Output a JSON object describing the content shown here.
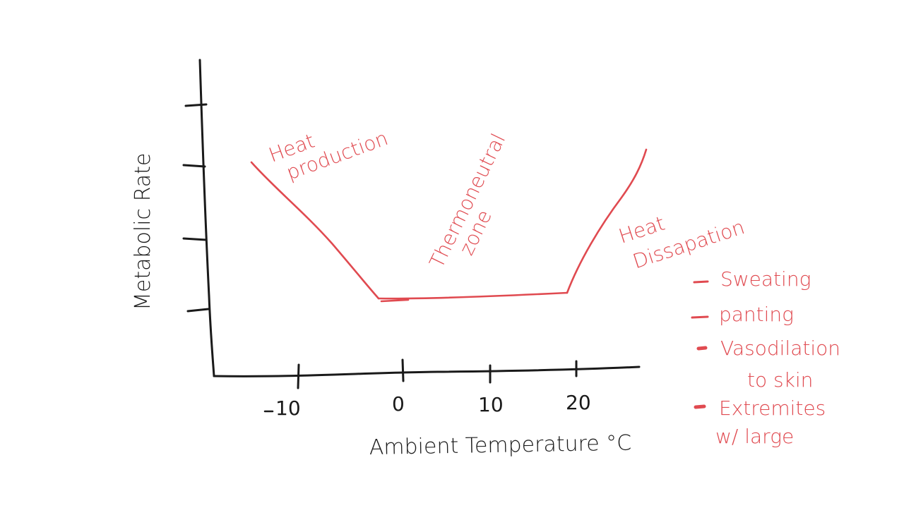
{
  "diagram": {
    "y_axis_label": "Metabolic Rate",
    "x_axis_label": "Ambient Temperature °C",
    "x_ticks": [
      "-10",
      "0",
      "10",
      "20"
    ],
    "annotations": {
      "heat_production": [
        "Heat",
        "production"
      ],
      "thermoneutral_zone": [
        "Thermoneutral",
        "zone"
      ],
      "heat_dissipation": [
        "Heat",
        "Dissapation"
      ]
    },
    "dissipation_list": [
      {
        "marker": "dash",
        "lines": [
          "Sweating"
        ]
      },
      {
        "marker": "dash",
        "lines": [
          "panting"
        ]
      },
      {
        "marker": "dot",
        "lines": [
          "Vasodilation",
          "to skin"
        ]
      },
      {
        "marker": "dot",
        "lines": [
          "Extremites",
          "w/ large"
        ]
      }
    ],
    "colors": {
      "axes_ink": "#1a1a1a",
      "curve_ink": "#e04a50",
      "background": "#ffffff"
    }
  }
}
